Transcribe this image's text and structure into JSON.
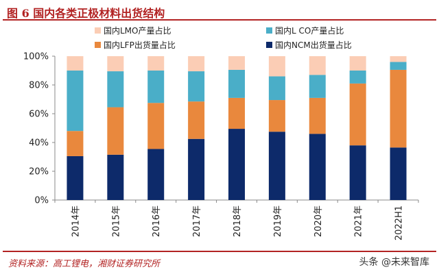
{
  "figure": {
    "title": "图 6 国内各类正极材料出货结构",
    "source": "资料来源：高工锂电，湘财证券研究所",
    "watermark": "头条 @未来智库"
  },
  "colors": {
    "title_red": "#b22222",
    "ncm": "#0d2a6a",
    "lfp": "#e9883d",
    "lco": "#4aaec8",
    "lmo": "#fbcdb5"
  },
  "chart_data": {
    "type": "bar",
    "stacked": true,
    "categories": [
      "2014年",
      "2015年",
      "2016年",
      "2017年",
      "2018年",
      "2019年",
      "2020年",
      "2021年",
      "2022H1"
    ],
    "series": [
      {
        "name": "国内NCM出货量占比",
        "color": "#0d2a6a",
        "values": [
          30.5,
          31.5,
          35.5,
          42.5,
          49.5,
          47.5,
          46,
          38,
          36.5
        ]
      },
      {
        "name": "国内LFP出货量占比",
        "color": "#e9883d",
        "values": [
          17.5,
          33,
          32,
          26,
          21.5,
          22,
          25,
          43,
          54
        ]
      },
      {
        "name": "国内L CO产量占比",
        "color": "#4aaec8",
        "values": [
          42,
          25,
          22.5,
          21,
          19.5,
          16.5,
          16,
          9,
          5.5
        ]
      },
      {
        "name": "国内LMO产量占比",
        "color": "#fbcdb5",
        "values": [
          10,
          10.5,
          10,
          10.5,
          9.5,
          14,
          13,
          10,
          4
        ]
      }
    ],
    "legend": [
      {
        "name": "国内LMO产量占比",
        "color": "#fbcdb5"
      },
      {
        "name": "国内L CO产量占比",
        "color": "#4aaec8"
      },
      {
        "name": "国内LFP出货量占比",
        "color": "#e9883d"
      },
      {
        "name": "国内NCM出货量占比",
        "color": "#0d2a6a"
      }
    ],
    "yticks": [
      "0%",
      "20%",
      "40%",
      "60%",
      "80%",
      "100%"
    ],
    "ylim": [
      0,
      100
    ],
    "grid": false,
    "legend_position": "top"
  }
}
